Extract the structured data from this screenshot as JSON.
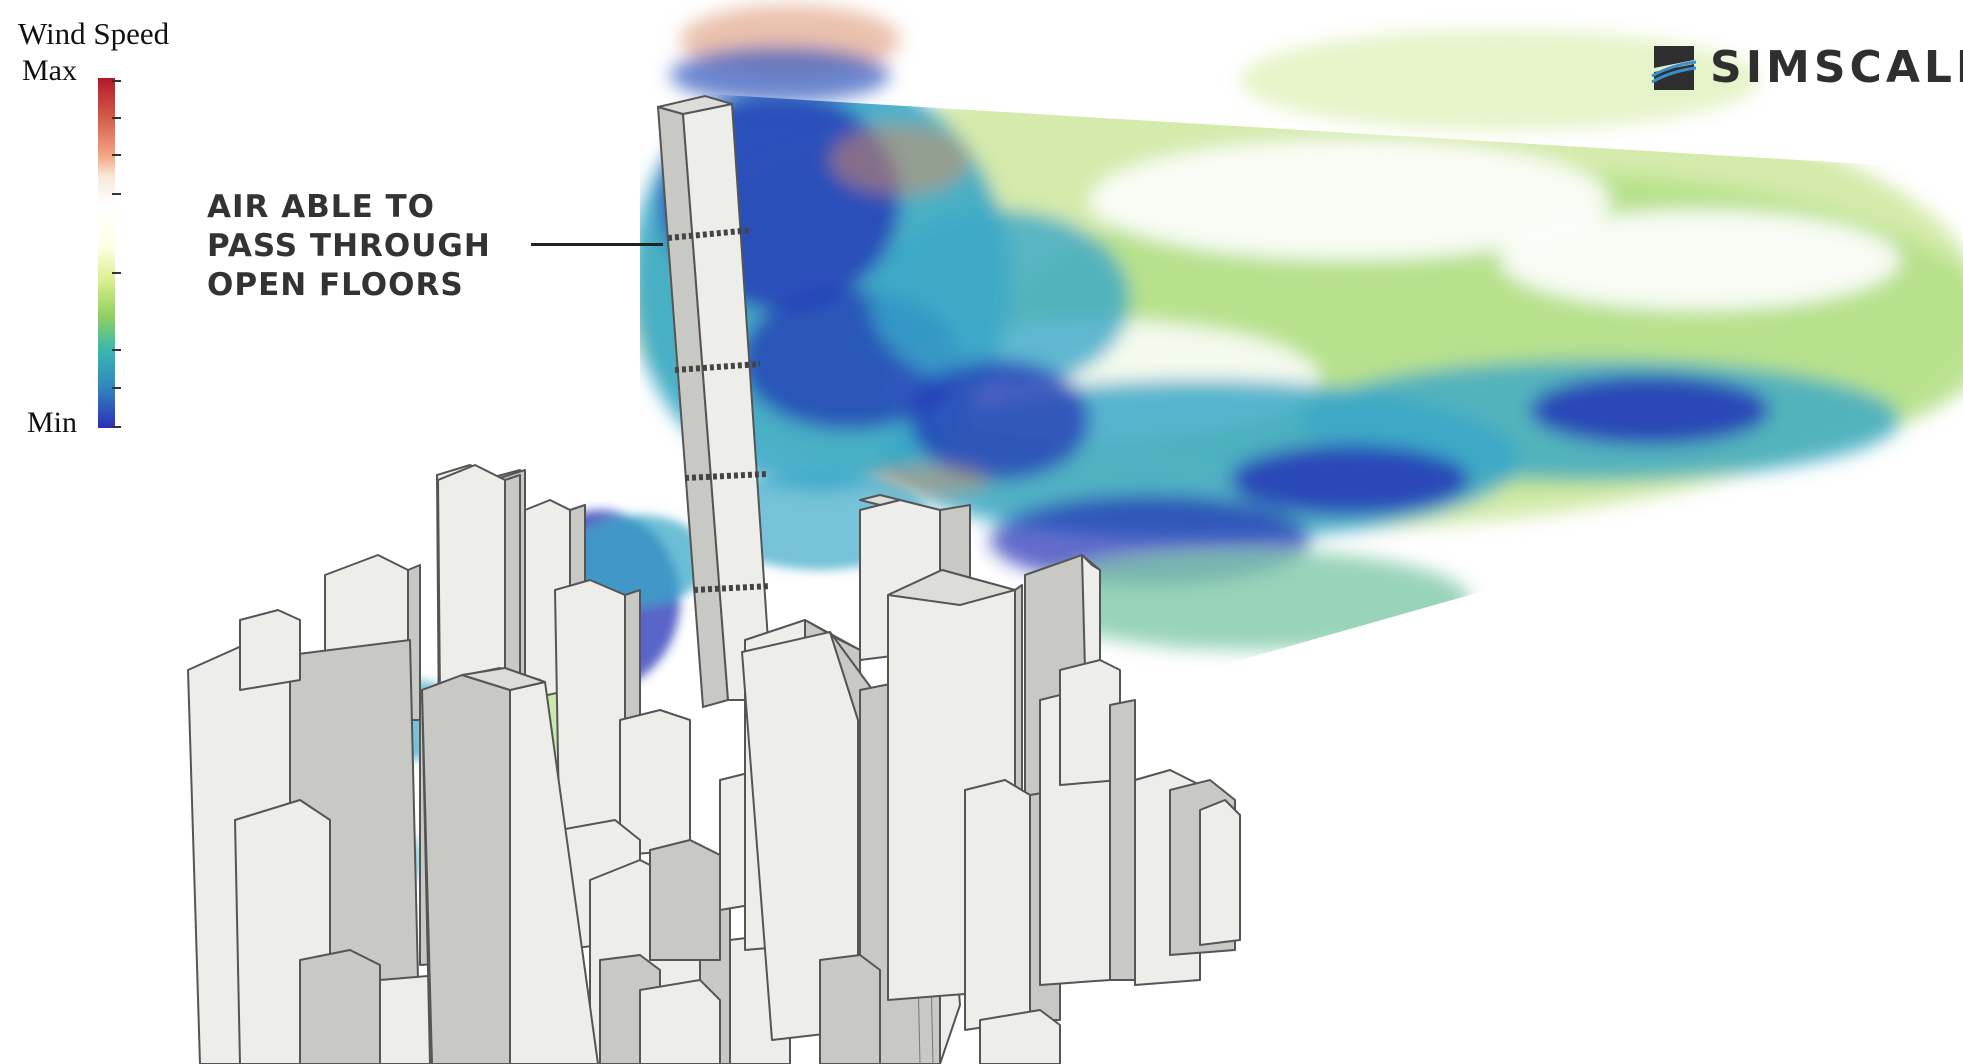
{
  "legend": {
    "title": "Wind Speed",
    "max_label": "Max",
    "min_label": "Min",
    "colors": [
      "#b2182b",
      "#d6604d",
      "#f4a582",
      "#ffffff",
      "#d9ef8b",
      "#91cf60",
      "#35b7b0",
      "#3288bd",
      "#2b2fb8"
    ]
  },
  "callout": {
    "lines": [
      "AIR ABLE TO",
      "PASS THROUGH",
      "OPEN FLOORS"
    ]
  },
  "logo": {
    "text": "SIMSCALE",
    "icon": "simscale-logo-icon",
    "color": "#2f2f2f"
  },
  "colors": {
    "building_face_light": "#ededea",
    "building_face_shade": "#c8c8c4",
    "building_edge": "#555555",
    "flow_blue": "#2130b5",
    "flow_cyan": "#3aa8c8",
    "flow_green": "#9bd47a",
    "flow_pale": "#e8f3c0",
    "flow_orange": "#e08e5e"
  }
}
